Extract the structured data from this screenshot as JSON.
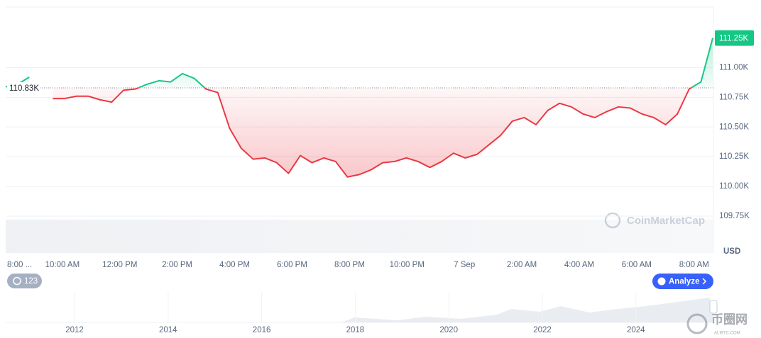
{
  "chart_data": {
    "type": "line",
    "x_tick_labels": [
      "8:00 ...",
      "10:00 AM",
      "12:00 PM",
      "2:00 PM",
      "4:00 PM",
      "6:00 PM",
      "8:00 PM",
      "10:00 PM",
      "7 Sep",
      "2:00 AM",
      "4:00 AM",
      "6:00 AM",
      "8:00 AM"
    ],
    "values": [
      110.84,
      110.86,
      110.92,
      null,
      110.74,
      110.74,
      110.76,
      110.76,
      110.73,
      110.71,
      110.81,
      110.82,
      110.86,
      110.89,
      110.88,
      110.95,
      110.91,
      110.82,
      110.79,
      110.49,
      110.32,
      110.23,
      110.24,
      110.2,
      110.11,
      110.26,
      110.2,
      110.24,
      110.21,
      110.08,
      110.1,
      110.14,
      110.2,
      110.21,
      110.24,
      110.21,
      110.16,
      110.21,
      110.28,
      110.24,
      110.27,
      110.35,
      110.43,
      110.55,
      110.58,
      110.52,
      110.64,
      110.7,
      110.67,
      110.61,
      110.58,
      110.63,
      110.67,
      110.66,
      110.61,
      110.58,
      110.52,
      110.61,
      110.82,
      110.88,
      111.25
    ],
    "up_color": "#16c784",
    "down_color": "#ea3943",
    "baseline": {
      "value": 110.83,
      "label": "110.83K"
    },
    "current": {
      "value": 111.25,
      "label": "111.25K"
    },
    "ylim": [
      109.44,
      111.51
    ],
    "yticks": [
      {
        "value": 109.75,
        "label": "109.75K"
      },
      {
        "value": 110,
        "label": "110.00K"
      },
      {
        "value": 110.25,
        "label": "110.25K"
      },
      {
        "value": 110.5,
        "label": "110.50K"
      },
      {
        "value": 110.75,
        "label": "110.75K"
      },
      {
        "value": 111,
        "label": "111.00K"
      }
    ],
    "grid": true,
    "currency": "USD",
    "watermark": "CoinMarketCap",
    "history_badge": "123",
    "analyze_button": "Analyze",
    "navigator_years": [
      "2012",
      "2014",
      "2016",
      "2018",
      "2020",
      "2022",
      "2024"
    ]
  },
  "site_watermark": {
    "name": "币圈网",
    "url": "ALIBTC.COM"
  }
}
